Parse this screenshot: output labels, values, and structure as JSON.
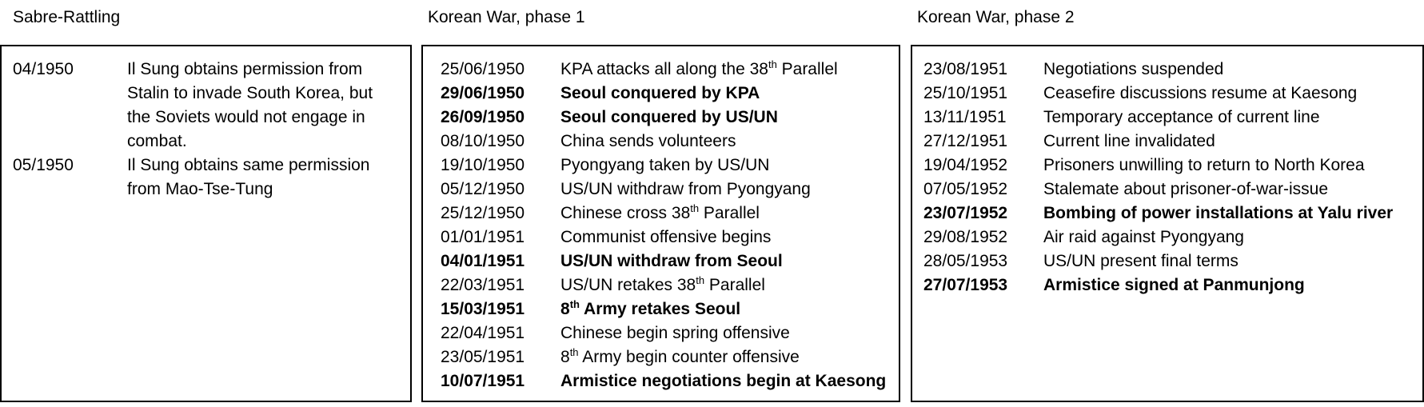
{
  "columns": [
    {
      "title": "Sabre-Rattling",
      "entries": [
        {
          "date": "04/1950",
          "event": "Il Sung obtains permission from Stalin to invade South Korea, but the Soviets would not engage in combat.",
          "bold": false
        },
        {
          "date": "05/1950",
          "event": "Il Sung obtains same permission from  Mao-Tse-Tung",
          "bold": false
        }
      ]
    },
    {
      "title": "Korean War, phase 1",
      "entries": [
        {
          "date": "25/06/1950",
          "event": "KPA attacks all along the 38th Parallel",
          "bold": false
        },
        {
          "date": "29/06/1950",
          "event": "Seoul conquered by KPA",
          "bold": true
        },
        {
          "date": "26/09/1950",
          "event": "Seoul conquered by US/UN",
          "bold": true
        },
        {
          "date": "08/10/1950",
          "event": "China sends volunteers",
          "bold": false
        },
        {
          "date": "19/10/1950",
          "event": "Pyongyang taken by US/UN",
          "bold": false
        },
        {
          "date": "05/12/1950",
          "event": "US/UN withdraw from Pyongyang",
          "bold": false
        },
        {
          "date": "25/12/1950",
          "event": "Chinese cross 38th Parallel",
          "bold": false
        },
        {
          "date": "01/01/1951",
          "event": "Communist offensive begins",
          "bold": false
        },
        {
          "date": "04/01/1951",
          "event": "US/UN withdraw from Seoul",
          "bold": true
        },
        {
          "date": "22/03/1951",
          "event": "US/UN retakes 38th Parallel",
          "bold": false
        },
        {
          "date": "15/03/1951",
          "event": "8th Army retakes Seoul",
          "bold": true
        },
        {
          "date": "22/04/1951",
          "event": "Chinese begin spring offensive",
          "bold": false
        },
        {
          "date": "23/05/1951",
          "event": "8th Army begin counter offensive",
          "bold": false
        },
        {
          "date": "10/07/1951",
          "event": "Armistice negotiations begin at Kaesong",
          "bold": true
        }
      ]
    },
    {
      "title": "Korean War, phase 2",
      "entries": [
        {
          "date": "23/08/1951",
          "event": "Negotiations suspended",
          "bold": false
        },
        {
          "date": "25/10/1951",
          "event": "Ceasefire discussions resume at Kaesong",
          "bold": false
        },
        {
          "date": "13/11/1951",
          "event": "Temporary acceptance of current line",
          "bold": false
        },
        {
          "date": "27/12/1951",
          "event": "Current line invalidated",
          "bold": false
        },
        {
          "date": "19/04/1952",
          "event": "Prisoners unwilling to return to North Korea",
          "bold": false
        },
        {
          "date": "07/05/1952",
          "event": "Stalemate about prisoner-of-war-issue",
          "bold": false
        },
        {
          "date": "23/07/1952",
          "event": "Bombing of power installations at Yalu river",
          "bold": true
        },
        {
          "date": "29/08/1952",
          "event": "Air raid against Pyongyang",
          "bold": false
        },
        {
          "date": "28/05/1953",
          "event": "US/UN present final terms",
          "bold": false
        },
        {
          "date": "27/07/1953",
          "event": "Armistice signed at Panmunjong",
          "bold": true
        }
      ]
    }
  ]
}
